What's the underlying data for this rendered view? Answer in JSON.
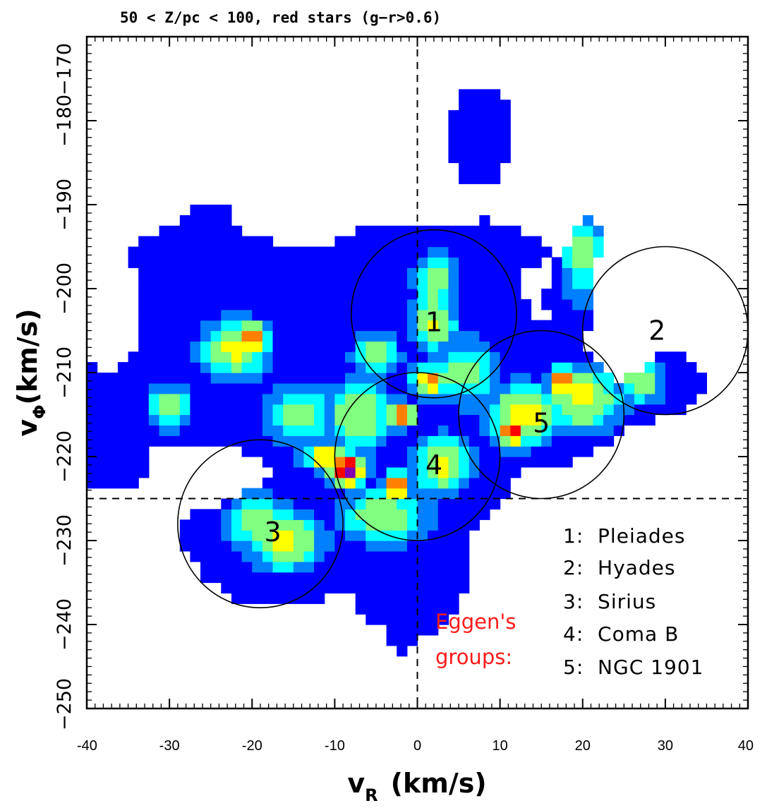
{
  "chart_data": {
    "type": "heatmap",
    "title": "50 < Z/pc < 100, red stars (g−r>0.6)",
    "xlabel": "v",
    "xlabel_sub": "R",
    "xlabel_units": "(km/s)",
    "ylabel": "v",
    "ylabel_sub": "Φ",
    "ylabel_units": "(km/s)",
    "xlim": [
      -40,
      40
    ],
    "ylim": [
      -250,
      -170
    ],
    "y_inverted": true,
    "x_ticks": [
      -40,
      -30,
      -20,
      -10,
      0,
      10,
      20,
      30,
      40
    ],
    "x_tick_labels": [
      "-40",
      "-30",
      "-20",
      "-10",
      "0",
      "10",
      "20",
      "30",
      "40"
    ],
    "y_ticks": [
      -170,
      -180,
      -190,
      -200,
      -210,
      -220,
      -230,
      -240,
      -250
    ],
    "y_tick_labels": [
      "−170",
      "−180",
      "−190",
      "−200",
      "−210",
      "−220",
      "−230",
      "−240",
      "−250"
    ],
    "colormap": [
      "#0000ff",
      "#0080ff",
      "#00ffff",
      "#80ff80",
      "#ffff00",
      "#ff8000",
      "#ff0000",
      "#8000b0"
    ],
    "density_peaks": [
      {
        "vR": 2,
        "vphi": -199,
        "amp": 0.5,
        "sx": 1.8,
        "sy": 2.4
      },
      {
        "vR": 2,
        "vphi": -204,
        "amp": 0.55,
        "sx": 2.0,
        "sy": 2.5
      },
      {
        "vR": 1.5,
        "vphi": -211,
        "amp": 0.75,
        "sx": 1.5,
        "sy": 1.4
      },
      {
        "vR": -2,
        "vphi": -215,
        "amp": 0.95,
        "sx": 1.2,
        "sy": 1.0
      },
      {
        "vR": -8.5,
        "vphi": -221.5,
        "amp": 1.0,
        "sx": 1.7,
        "sy": 1.5
      },
      {
        "vR": -11,
        "vphi": -220,
        "amp": 0.75,
        "sx": 2.0,
        "sy": 1.2
      },
      {
        "vR": -2.5,
        "vphi": -223.5,
        "amp": 0.95,
        "sx": 1.0,
        "sy": 1.2
      },
      {
        "vR": 3,
        "vphi": -221,
        "amp": 0.6,
        "sx": 2.5,
        "sy": 2.5
      },
      {
        "vR": -4,
        "vphi": -227,
        "amp": 0.5,
        "sx": 4.0,
        "sy": 2.5
      },
      {
        "vR": -20,
        "vphi": -206,
        "amp": 0.85,
        "sx": 1.5,
        "sy": 1.4
      },
      {
        "vR": -22,
        "vphi": -207,
        "amp": 0.6,
        "sx": 3.0,
        "sy": 2.5
      },
      {
        "vR": -30,
        "vphi": -214,
        "amp": 0.55,
        "sx": 1.8,
        "sy": 1.8
      },
      {
        "vR": -16,
        "vphi": -230,
        "amp": 0.6,
        "sx": 3.2,
        "sy": 2.5
      },
      {
        "vR": -19,
        "vphi": -228,
        "amp": 0.5,
        "sx": 3.0,
        "sy": 2.5
      },
      {
        "vR": 11.5,
        "vphi": -217,
        "amp": 0.85,
        "sx": 1.6,
        "sy": 1.4
      },
      {
        "vR": 13,
        "vphi": -215,
        "amp": 0.7,
        "sx": 3.0,
        "sy": 2.5
      },
      {
        "vR": 17.5,
        "vphi": -211,
        "amp": 0.95,
        "sx": 0.9,
        "sy": 1.2
      },
      {
        "vR": 20,
        "vphi": -213,
        "amp": 0.6,
        "sx": 3.5,
        "sy": 2.8
      },
      {
        "vR": 27,
        "vphi": -211,
        "amp": 0.5,
        "sx": 2.0,
        "sy": 2.0
      },
      {
        "vR": 20,
        "vphi": -196,
        "amp": 0.45,
        "sx": 2.0,
        "sy": 4.0
      },
      {
        "vR": -7,
        "vphi": -215,
        "amp": 0.55,
        "sx": 3.0,
        "sy": 3.0
      },
      {
        "vR": -14,
        "vphi": -215,
        "amp": 0.5,
        "sx": 3.0,
        "sy": 2.5
      },
      {
        "vR": -5,
        "vphi": -208,
        "amp": 0.5,
        "sx": 2.0,
        "sy": 2.0
      },
      {
        "vR": 6,
        "vphi": -210,
        "amp": 0.45,
        "sx": 3.0,
        "sy": 3.0
      }
    ],
    "density_support": [
      {
        "vR": -2,
        "vphi": -217,
        "sx": 11,
        "sy": 10
      },
      {
        "vR": -22,
        "vphi": -208,
        "sx": 14,
        "sy": 9
      },
      {
        "vR": -18,
        "vphi": -230,
        "sx": 7,
        "sy": 4.5
      },
      {
        "vR": 0,
        "vphi": -233,
        "sx": 5,
        "sy": 5
      },
      {
        "vR": 1,
        "vphi": -202,
        "sx": 7,
        "sy": 6
      },
      {
        "vR": 15,
        "vphi": -214,
        "sx": 12,
        "sy": 5.5
      },
      {
        "vR": 21,
        "vphi": -197,
        "sx": 3.5,
        "sy": 7
      },
      {
        "vR": 8,
        "vphi": -182,
        "sx": 2.5,
        "sy": 3.5
      },
      {
        "vR": -5,
        "vphi": -196,
        "sx": 4,
        "sy": 4
      },
      {
        "vR": -27,
        "vphi": -200,
        "sx": 5,
        "sy": 3
      },
      {
        "vR": -25,
        "vphi": -193,
        "sx": 2,
        "sy": 2
      },
      {
        "vR": -36,
        "vphi": -221,
        "sx": 3.5,
        "sy": 1.8
      },
      {
        "vR": -1.5,
        "vphi": -239,
        "sx": 1.5,
        "sy": 2.5
      },
      {
        "vR": 11,
        "vphi": -195,
        "sx": 5,
        "sy": 2
      }
    ],
    "density_holes": [
      {
        "vR": -37,
        "vphi": -204,
        "sx": 2.5,
        "sy": 3.5
      },
      {
        "vR": -10,
        "vphi": -190,
        "sx": 5,
        "sy": 2.5
      },
      {
        "vR": 16,
        "vphi": -188,
        "sx": 3,
        "sy": 5
      },
      {
        "vR": 24,
        "vphi": -200,
        "sx": 2.2,
        "sy": 7
      },
      {
        "vR": -27,
        "vphi": -222,
        "sx": 4,
        "sy": 2.2
      },
      {
        "vR": 30,
        "vphi": -225,
        "sx": 5,
        "sy": 5
      },
      {
        "vR": 25,
        "vphi": -235,
        "sx": 10,
        "sy": 8
      },
      {
        "vR": -37,
        "vphi": -240,
        "sx": 6,
        "sy": 6
      }
    ],
    "reference_lines": {
      "vR": 0,
      "vphi": -225
    },
    "eggen_circles": [
      {
        "label": "1",
        "vR": 2,
        "vphi": -203,
        "radius": 10,
        "label_vR": 2,
        "label_vphi": -204
      },
      {
        "label": "2",
        "vR": 30,
        "vphi": -205,
        "radius": 10,
        "label_vR": 29,
        "label_vphi": -205
      },
      {
        "label": "3",
        "vR": -19,
        "vphi": -228,
        "radius": 10,
        "label_vR": -17.5,
        "label_vphi": -229
      },
      {
        "label": "4",
        "vR": 0,
        "vphi": -220,
        "radius": 10,
        "label_vR": 2,
        "label_vphi": -221
      },
      {
        "label": "5",
        "vR": 15,
        "vphi": -215,
        "radius": 10,
        "label_vR": 15,
        "label_vphi": -216
      }
    ],
    "legend_title_lines": [
      "Eggen's",
      "groups:"
    ],
    "legend_entries": [
      "1:  Pleiades",
      "2:  Hyades",
      "3:  Sirius",
      "4:  Coma B",
      "5:  NGC 1901"
    ],
    "legend_placement": "bottom-right",
    "grid": false
  }
}
